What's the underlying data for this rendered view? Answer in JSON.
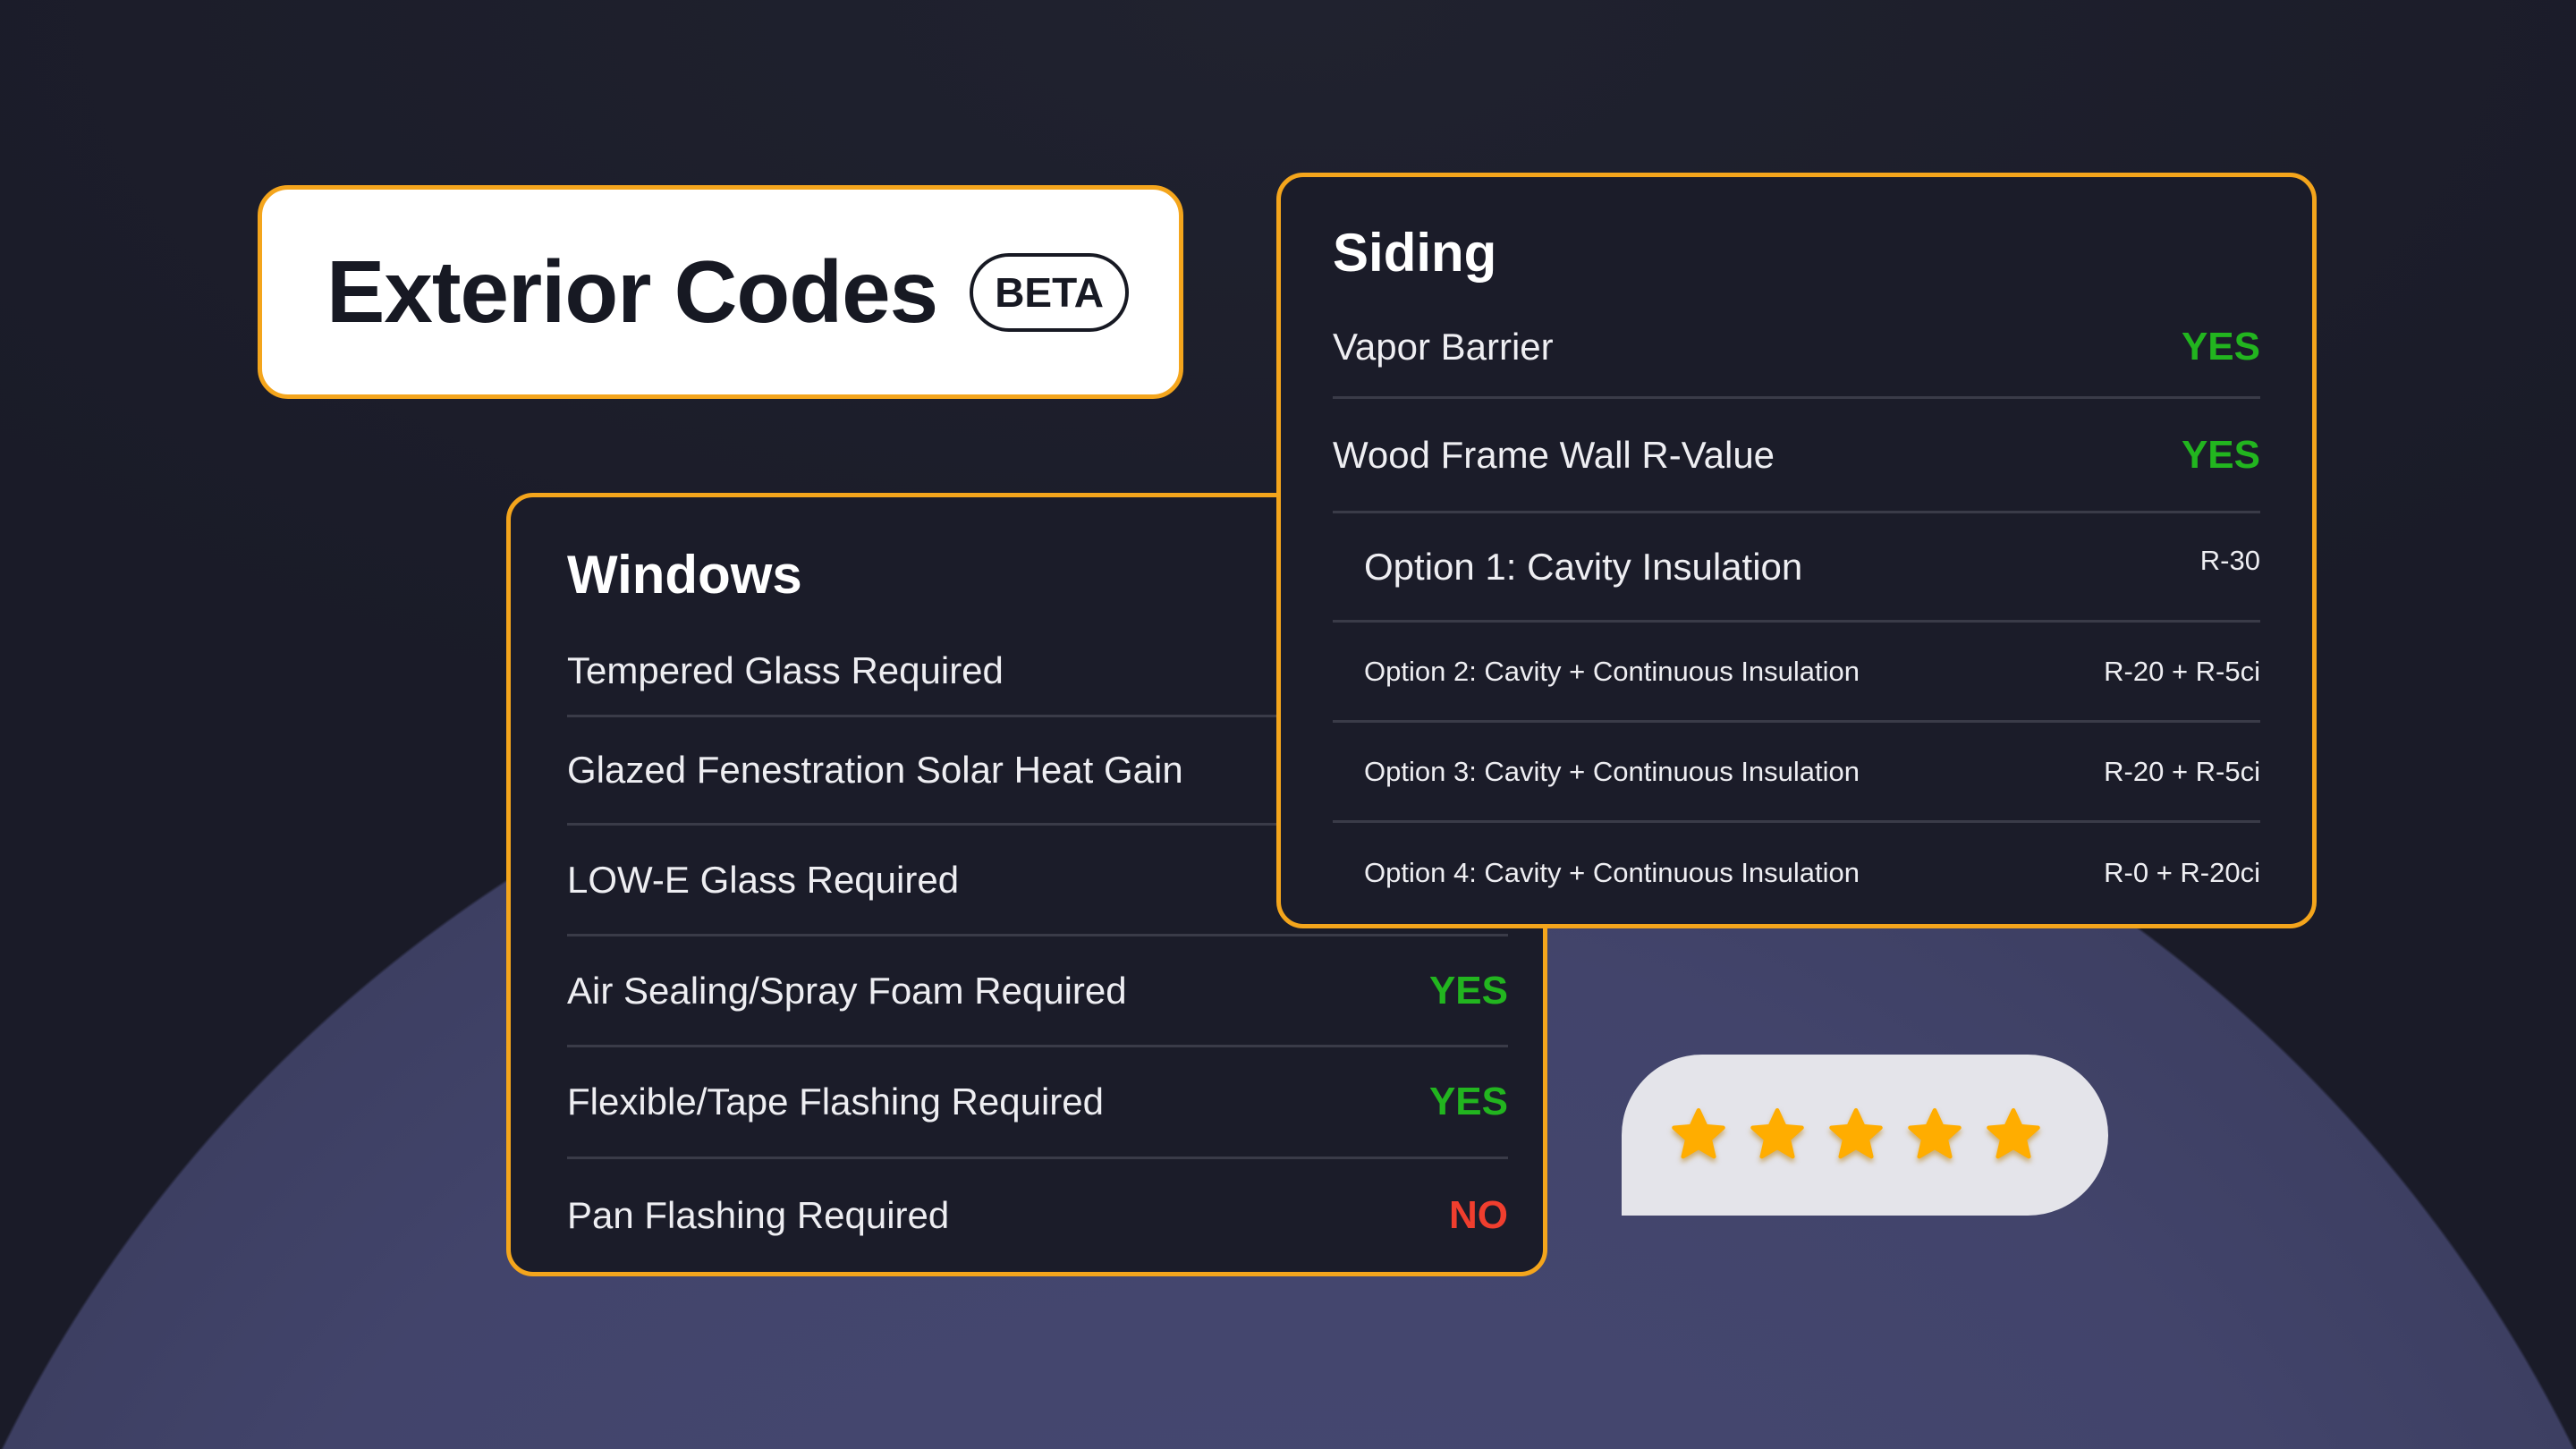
{
  "header": {
    "title": "Exterior Codes",
    "badge": "BETA"
  },
  "windows": {
    "title": "Windows",
    "rows": [
      {
        "label": "Tempered Glass Required",
        "value": ""
      },
      {
        "label": "Glazed Fenestration Solar Heat Gain",
        "value": ""
      },
      {
        "label": "LOW-E Glass Required",
        "value": ""
      },
      {
        "label": "Air Sealing/Spray Foam Required",
        "value": "YES"
      },
      {
        "label": "Flexible/Tape Flashing Required",
        "value": "YES"
      },
      {
        "label": "Pan Flashing Required",
        "value": "NO"
      }
    ]
  },
  "siding": {
    "title": "Siding",
    "rows": [
      {
        "label": "Vapor Barrier",
        "value": "YES"
      },
      {
        "label": "Wood Frame Wall R-Value",
        "value": "YES"
      },
      {
        "label": "Option 1: Cavity Insulation",
        "value": "R-30"
      },
      {
        "label": "Option 2: Cavity + Continuous Insulation",
        "value": "R-20 + R-5ci"
      },
      {
        "label": "Option 3: Cavity + Continuous Insulation",
        "value": "R-20 + R-5ci"
      },
      {
        "label": "Option 4: Cavity + Continuous Insulation",
        "value": "R-0 + R-20ci"
      }
    ]
  },
  "rating": {
    "stars": 5,
    "max": 5,
    "icon": "star-icon"
  },
  "colors": {
    "accent": "#f4a51c",
    "yes": "#22b51f",
    "no": "#f03e2e",
    "card": "#1b1c29",
    "star": "#ffad00"
  }
}
